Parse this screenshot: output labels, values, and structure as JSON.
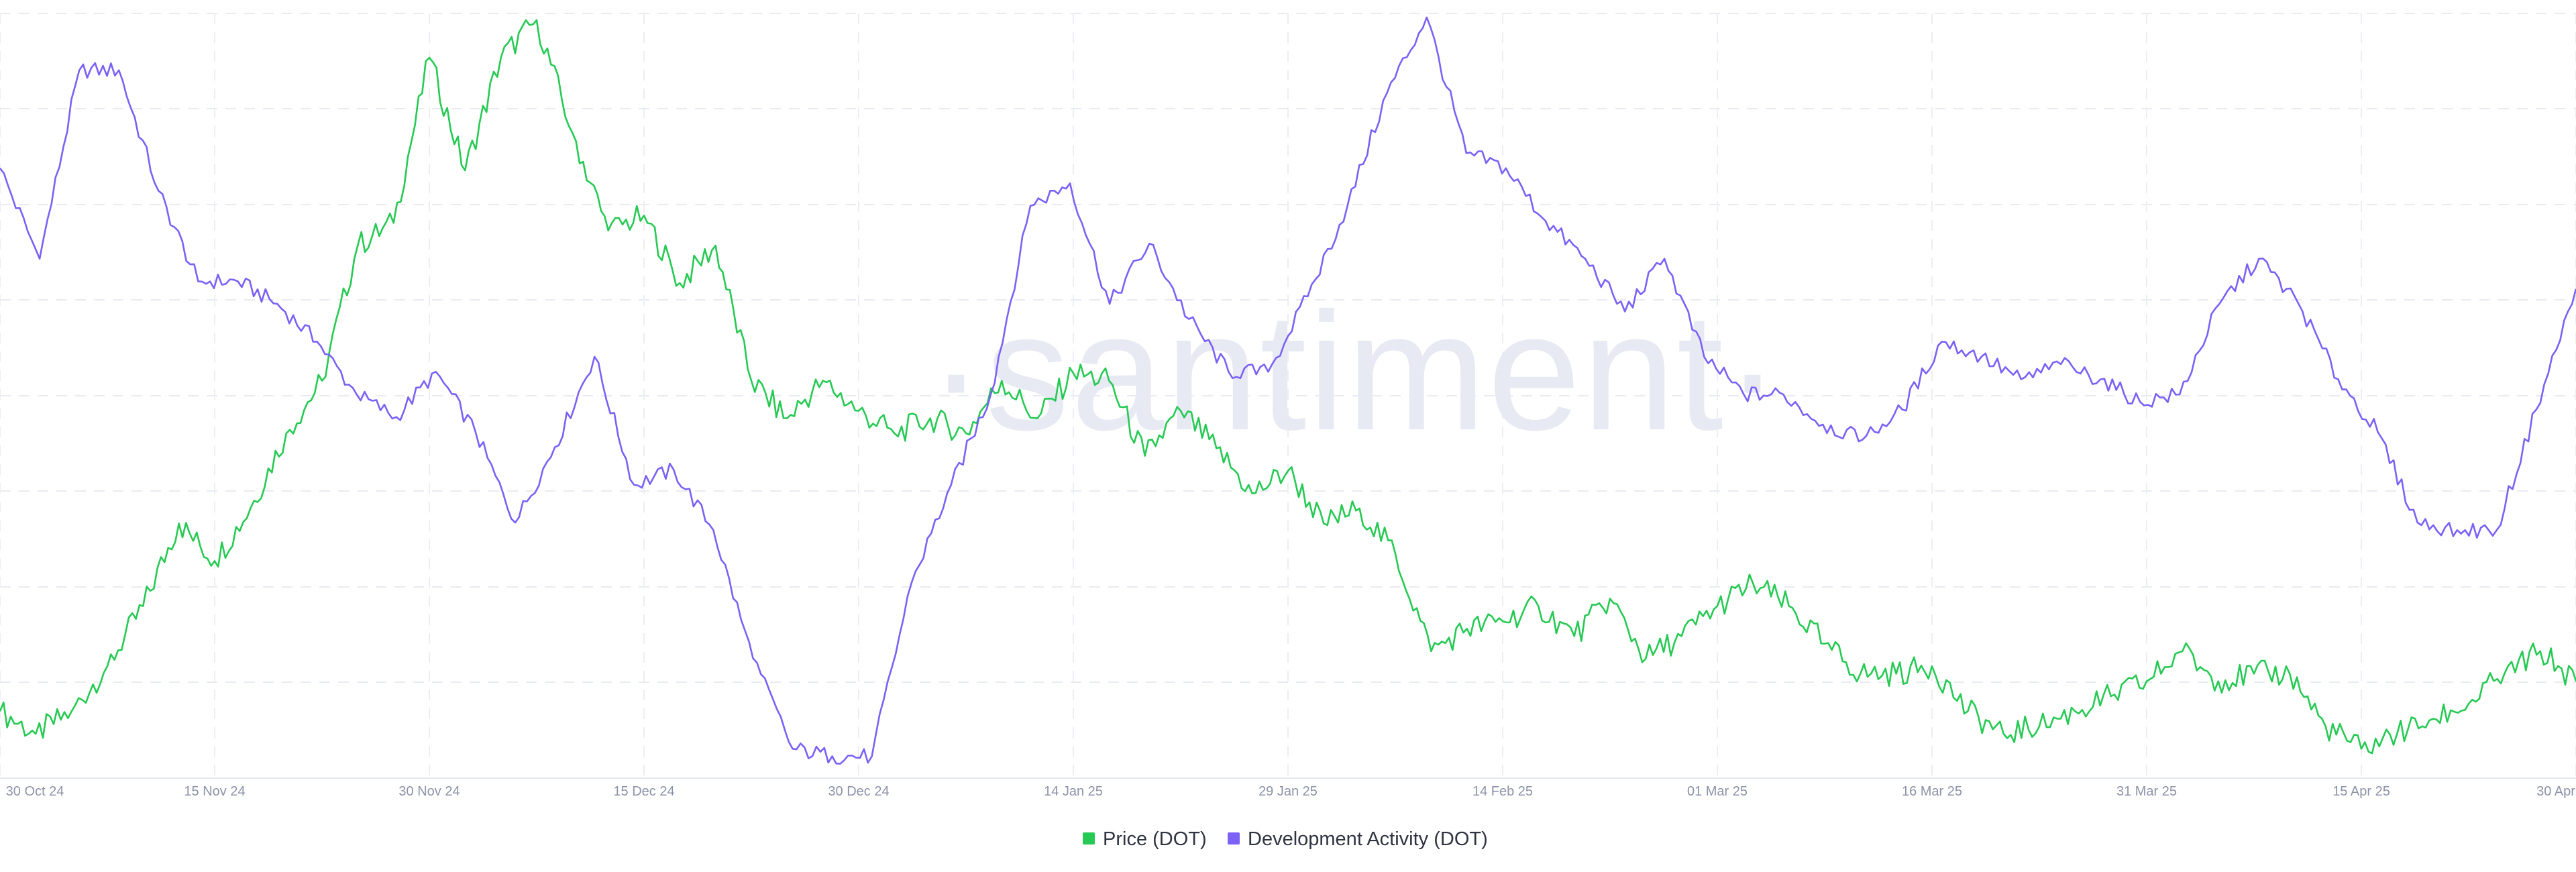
{
  "watermark": "·santiment·",
  "chart_data": {
    "type": "line",
    "x_ticks": [
      "30 Oct 24",
      "15 Nov 24",
      "30 Nov 24",
      "15 Dec 24",
      "30 Dec 24",
      "14 Jan 25",
      "29 Jan 25",
      "14 Feb 25",
      "01 Mar 25",
      "16 Mar 25",
      "31 Mar 25",
      "15 Apr 25",
      "30 Apr"
    ],
    "grid": true,
    "legend_position": "bottom-center",
    "y_axes": "hidden; each series scaled to its own range (values below are relative 0–100 levels)",
    "series": [
      {
        "name": "Price (DOT)",
        "color": "#26c953",
        "values": [
          8,
          5,
          8,
          14,
          22,
          33,
          28,
          35,
          45,
          52,
          70,
          73,
          95,
          80,
          95,
          100,
          85,
          72,
          74,
          65,
          70,
          52,
          47,
          52,
          48,
          45,
          47,
          45,
          52,
          47,
          53,
          52,
          42,
          48,
          43,
          37,
          40,
          33,
          35,
          29,
          16,
          19,
          20,
          22,
          18,
          23,
          15,
          18,
          22,
          25,
          22,
          17,
          13,
          13,
          14,
          8,
          5,
          6,
          8,
          10,
          12,
          16,
          12,
          13,
          13,
          6,
          3,
          5,
          7,
          9,
          13,
          16,
          12
        ]
      },
      {
        "name": "Development Activity (DOT)",
        "color": "#7b61f5",
        "values": [
          80,
          68,
          93,
          93,
          77,
          65,
          65,
          62,
          57,
          50,
          47,
          53,
          45,
          33,
          43,
          55,
          38,
          40,
          32,
          15,
          3,
          2,
          2,
          25,
          38,
          50,
          75,
          78,
          62,
          70,
          60,
          53,
          53,
          63,
          75,
          90,
          100,
          82,
          80,
          73,
          68,
          61,
          68,
          55,
          50,
          50,
          46,
          44,
          48,
          57,
          55,
          52,
          54,
          52,
          49,
          50,
          62,
          68,
          62,
          52,
          45,
          33,
          32,
          32,
          48,
          64
        ]
      }
    ]
  }
}
